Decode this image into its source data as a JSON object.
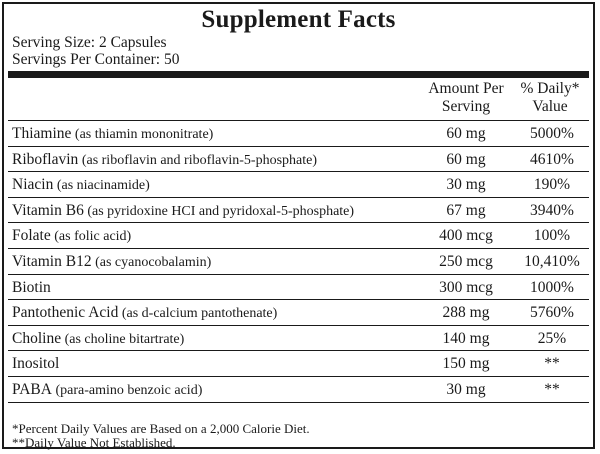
{
  "panel": {
    "title": "Supplement Facts",
    "serving_size": "Serving Size: 2 Capsules",
    "servings_per_container": "Servings Per Container: 50"
  },
  "header": {
    "amount_line1": "Amount Per",
    "amount_line2": "Serving",
    "dv_line1": "% Daily*",
    "dv_line2": "Value"
  },
  "rows": [
    {
      "name": "Thiamine",
      "extra": " (as thiamin mononitrate)",
      "amount": "60 mg",
      "dv": "5000%"
    },
    {
      "name": "Riboflavin",
      "extra": " (as riboflavin and riboflavin-5-phosphate)",
      "amount": "60 mg",
      "dv": "4610%"
    },
    {
      "name": "Niacin",
      "extra": " (as niacinamide)",
      "amount": "30 mg",
      "dv": "190%"
    },
    {
      "name": "Vitamin B6",
      "extra": " (as pyridoxine HCI and pyridoxal-5-phosphate)",
      "amount": "67 mg",
      "dv": "3940%"
    },
    {
      "name": "Folate",
      "extra": " (as folic acid)",
      "amount": "400 mcg",
      "dv": "100%"
    },
    {
      "name": "Vitamin B12",
      "extra": " (as cyanocobalamin)",
      "amount": "250 mcg",
      "dv": "10,410%"
    },
    {
      "name": "Biotin",
      "extra": "",
      "amount": "300 mcg",
      "dv": "1000%"
    },
    {
      "name": "Pantothenic Acid",
      "extra": " (as d-calcium pantothenate)",
      "amount": "288 mg",
      "dv": "5760%"
    },
    {
      "name": "Choline",
      "extra": " (as choline bitartrate)",
      "amount": "140 mg",
      "dv": "25%"
    },
    {
      "name": "Inositol",
      "extra": "",
      "amount": "150 mg",
      "dv": "**"
    },
    {
      "name": "PABA",
      "extra": " (para-amino benzoic acid)",
      "amount": "30 mg",
      "dv": "**"
    }
  ],
  "footnotes": {
    "daily_values": "*Percent Daily Values are Based on a 2,000 Calorie Diet.",
    "not_established": "**Daily Value Not Established."
  }
}
